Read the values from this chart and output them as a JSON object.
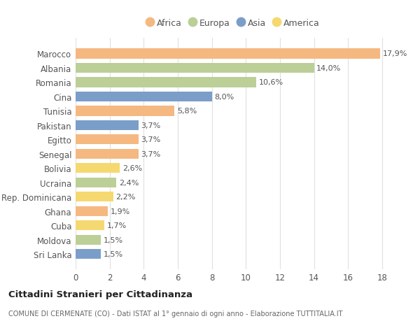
{
  "countries": [
    "Marocco",
    "Albania",
    "Romania",
    "Cina",
    "Tunisia",
    "Pakistan",
    "Egitto",
    "Senegal",
    "Bolivia",
    "Ucraina",
    "Rep. Dominicana",
    "Ghana",
    "Cuba",
    "Moldova",
    "Sri Lanka"
  ],
  "values": [
    17.9,
    14.0,
    10.6,
    8.0,
    5.8,
    3.7,
    3.7,
    3.7,
    2.6,
    2.4,
    2.2,
    1.9,
    1.7,
    1.5,
    1.5
  ],
  "continents": [
    "Africa",
    "Europa",
    "Europa",
    "Asia",
    "Africa",
    "Asia",
    "Africa",
    "Africa",
    "America",
    "Europa",
    "America",
    "Africa",
    "America",
    "Europa",
    "Asia"
  ],
  "colors": {
    "Africa": "#F5B880",
    "Europa": "#BBCF97",
    "Asia": "#7B9EC9",
    "America": "#F5D870"
  },
  "labels": [
    "17,9%",
    "14,0%",
    "10,6%",
    "8,0%",
    "5,8%",
    "3,7%",
    "3,7%",
    "3,7%",
    "2,6%",
    "2,4%",
    "2,2%",
    "1,9%",
    "1,7%",
    "1,5%",
    "1,5%"
  ],
  "legend_order": [
    "Africa",
    "Europa",
    "Asia",
    "America"
  ],
  "xlim": [
    0,
    18.5
  ],
  "xticks": [
    0,
    2,
    4,
    6,
    8,
    10,
    12,
    14,
    16,
    18
  ],
  "title": "Cittadini Stranieri per Cittadinanza",
  "subtitle": "COMUNE DI CERMENATE (CO) - Dati ISTAT al 1° gennaio di ogni anno - Elaborazione TUTTITALIA.IT",
  "bg_color": "#FFFFFF",
  "grid_color": "#E0E0E0",
  "bar_height": 0.7
}
